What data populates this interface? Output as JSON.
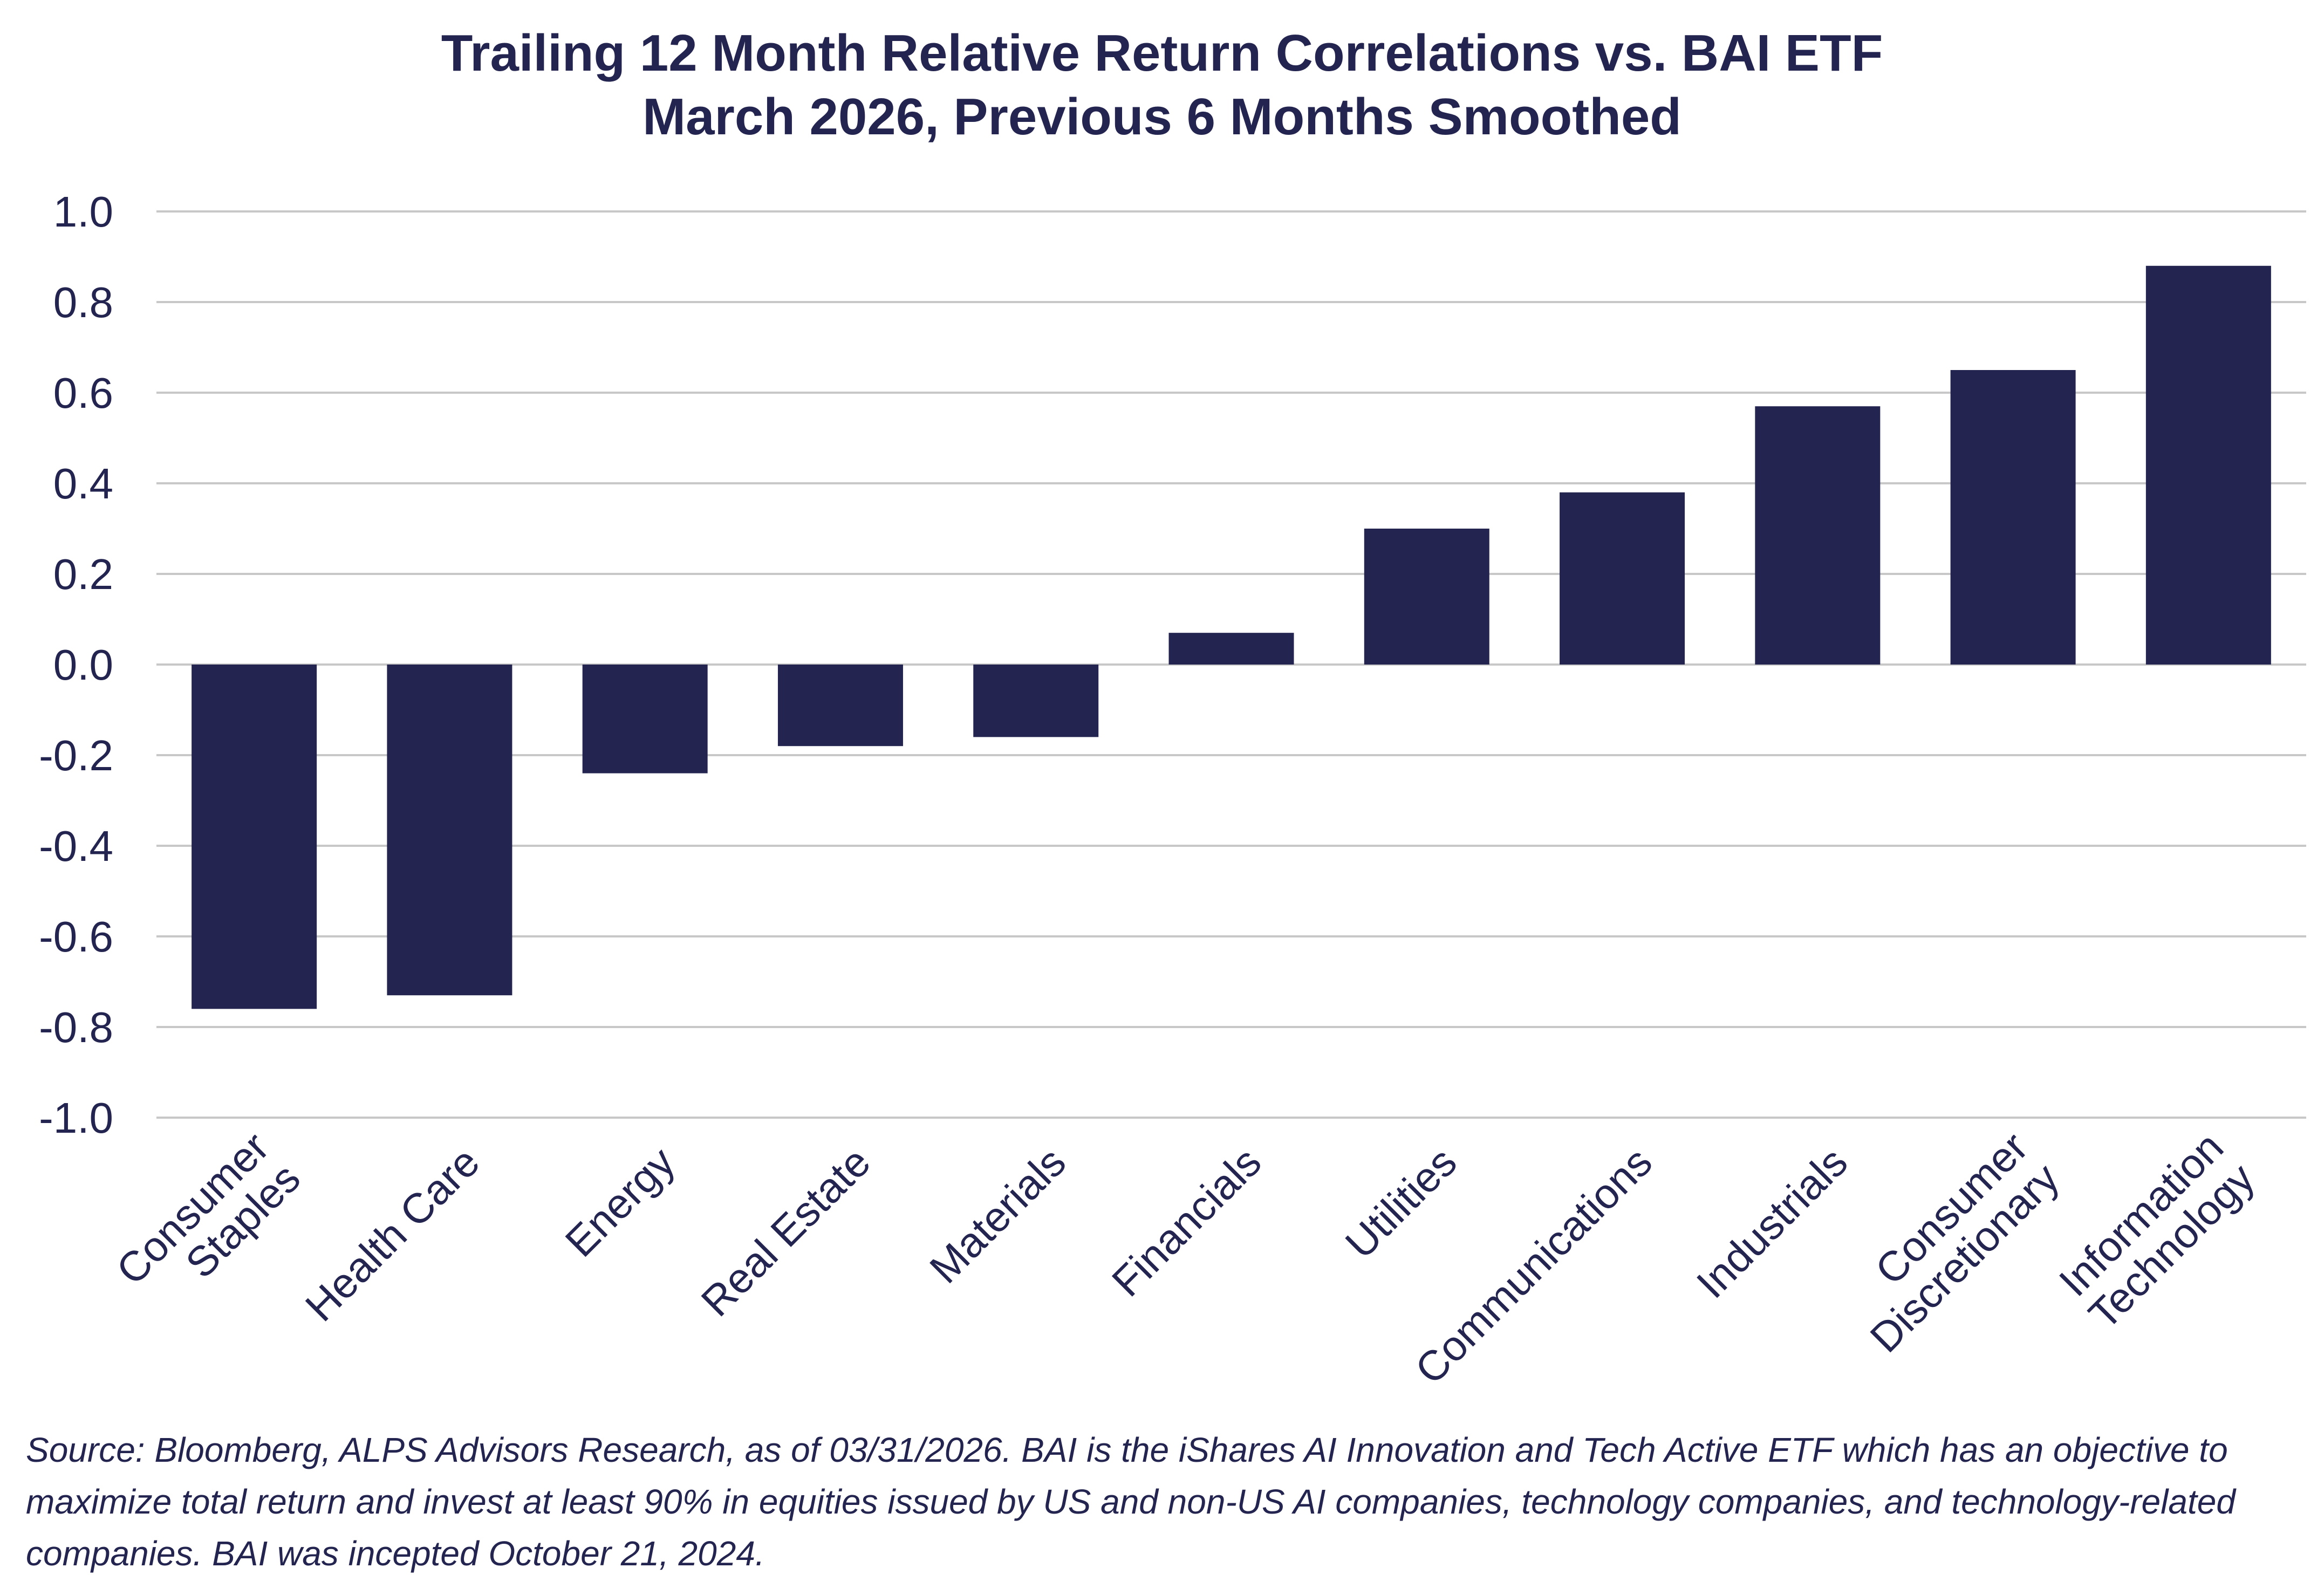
{
  "chart_data": {
    "type": "bar",
    "title": "Trailing 12 Month Relative Return Correlations vs. BAI ETF",
    "subtitle": "March 2026, Previous 6 Months Smoothed",
    "xlabel": "",
    "ylabel": "",
    "ylim": [
      -1.0,
      1.0
    ],
    "yticks": [
      "1.0",
      "0.8",
      "0.6",
      "0.4",
      "0.2",
      "0.0",
      "-0.2",
      "-0.4",
      "-0.6",
      "-0.8",
      "-1.0"
    ],
    "grid": true,
    "legend": "none",
    "categories": [
      [
        "Consumer",
        "Staples"
      ],
      [
        "Health Care"
      ],
      [
        "Energy"
      ],
      [
        "Real Estate"
      ],
      [
        "Materials"
      ],
      [
        "Financials"
      ],
      [
        "Utilities"
      ],
      [
        "Communications"
      ],
      [
        "Industrials"
      ],
      [
        "Consumer",
        "Discretionary"
      ],
      [
        "Information",
        "Technology"
      ]
    ],
    "values": [
      -0.76,
      -0.73,
      -0.24,
      -0.18,
      -0.16,
      0.07,
      0.3,
      0.38,
      0.57,
      0.65,
      0.88
    ],
    "bar_color": "#23244f",
    "grid_color": "#c8c8c8"
  },
  "source_note": "Source: Bloomberg, ALPS Advisors Research, as of 03/31/2026. BAI is the iShares AI Innovation and Tech Active ETF which has an objective to maximize total return and invest at least 90% in equities issued by US and non-US AI companies, technology companies, and technology-related companies. BAI was incepted October 21, 2024."
}
